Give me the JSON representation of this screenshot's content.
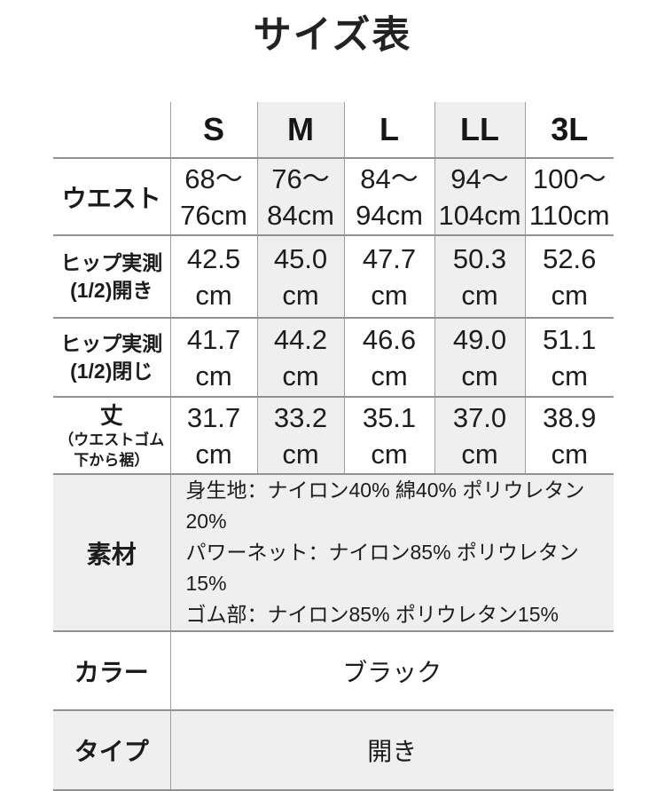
{
  "page": {
    "title": "サイズ表"
  },
  "colors": {
    "highlight_bg": "#efefef",
    "border": "#929292",
    "text": "#1d1d1d",
    "background": "#ffffff"
  },
  "table": {
    "header": {
      "sizes": [
        "S",
        "M",
        "L",
        "LL",
        "3L"
      ],
      "highlighted_sizes": [
        "M",
        "LL"
      ]
    },
    "measurement_rows": [
      {
        "label": [
          "ウエスト"
        ],
        "values": [
          [
            "68〜",
            "76cm"
          ],
          [
            "76〜",
            "84cm"
          ],
          [
            "84〜",
            "94cm"
          ],
          [
            "94〜",
            "104cm"
          ],
          [
            "100〜",
            "110cm"
          ]
        ]
      },
      {
        "label": [
          "ヒップ実測",
          "(1/2)開き"
        ],
        "values": [
          [
            "42.5",
            "cm"
          ],
          [
            "45.0",
            "cm"
          ],
          [
            "47.7",
            "cm"
          ],
          [
            "50.3",
            "cm"
          ],
          [
            "52.6",
            "cm"
          ]
        ]
      },
      {
        "label": [
          "ヒップ実測",
          "(1/2)閉じ"
        ],
        "values": [
          [
            "41.7",
            "cm"
          ],
          [
            "44.2",
            "cm"
          ],
          [
            "46.6",
            "cm"
          ],
          [
            "49.0",
            "cm"
          ],
          [
            "51.1",
            "cm"
          ]
        ]
      },
      {
        "label_main": "丈",
        "label_sub": [
          "（ウエストゴム",
          "下から裾）"
        ],
        "values": [
          [
            "31.7",
            "cm"
          ],
          [
            "33.2",
            "cm"
          ],
          [
            "35.1",
            "cm"
          ],
          [
            "37.0",
            "cm"
          ],
          [
            "38.9",
            "cm"
          ]
        ]
      }
    ],
    "info_rows": [
      {
        "label": "素材",
        "lines": [
          "身生地：ナイロン40% 綿40% ポリウレタン20%",
          "パワーネット：ナイロン85% ポリウレタン15%",
          "ゴム部：ナイロン85% ポリウレタン15%"
        ]
      },
      {
        "label": "カラー",
        "value": "ブラック"
      },
      {
        "label": "タイプ",
        "value": "開き"
      }
    ]
  }
}
